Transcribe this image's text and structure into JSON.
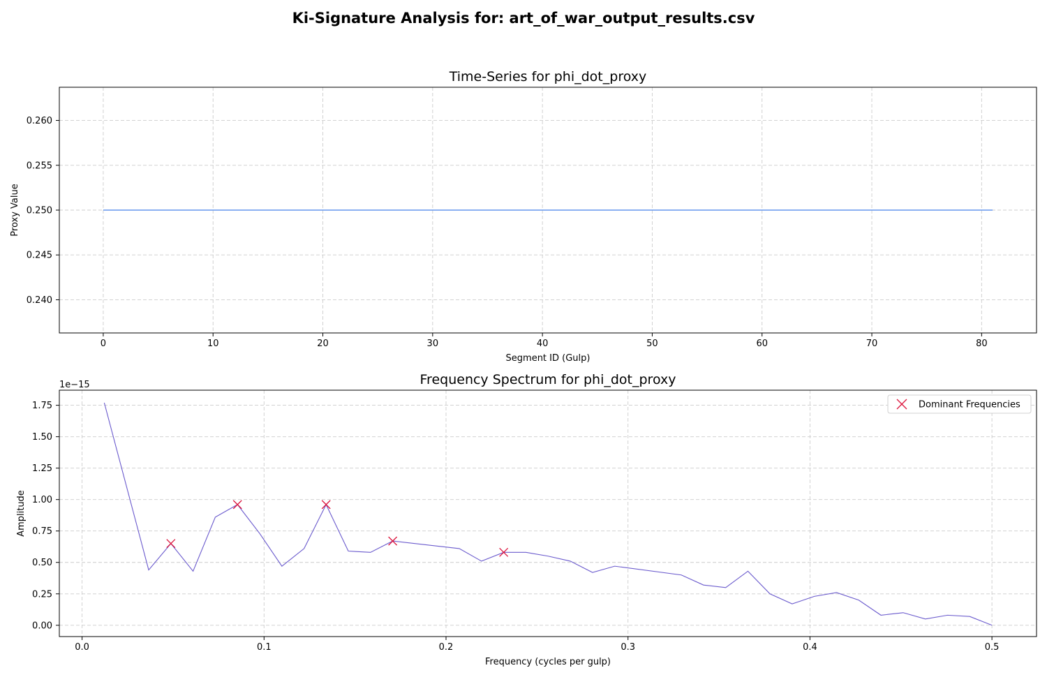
{
  "figure_title": "Ki-Signature Analysis for: art_of_war_output_results.csv",
  "colors": {
    "timeseries_line": "#6495ed",
    "spectrum_line": "#6a5acd",
    "dominant_marker": "#dc143c",
    "grid": "#cccccc"
  },
  "chart_data": [
    {
      "type": "line",
      "title": "Time-Series for phi_dot_proxy",
      "xlabel": "Segment ID (Gulp)",
      "ylabel": "Proxy Value",
      "xlim": [
        -4,
        85
      ],
      "ylim": [
        0.2363,
        0.2637
      ],
      "xticks": [
        0,
        10,
        20,
        30,
        40,
        50,
        60,
        70,
        80
      ],
      "yticks": [
        0.24,
        0.245,
        0.25,
        0.255,
        0.26
      ],
      "ytick_labels": [
        "0.240",
        "0.245",
        "0.250",
        "0.255",
        "0.260"
      ],
      "grid": true,
      "series": [
        {
          "x": [
            0,
            81
          ],
          "y": [
            0.25,
            0.25
          ]
        }
      ]
    },
    {
      "type": "line",
      "title": "Frequency Spectrum for phi_dot_proxy",
      "xlabel": "Frequency (cycles per gulp)",
      "ylabel": "Amplitude",
      "y_scale_label": "1e−15",
      "xlim": [
        -0.0125,
        0.5245
      ],
      "ylim": [
        -0.09,
        1.87
      ],
      "xticks": [
        0.0,
        0.1,
        0.2,
        0.3,
        0.4,
        0.5
      ],
      "xtick_labels": [
        "0.0",
        "0.1",
        "0.2",
        "0.3",
        "0.4",
        "0.5"
      ],
      "yticks": [
        0.0,
        0.25,
        0.5,
        0.75,
        1.0,
        1.25,
        1.5,
        1.75
      ],
      "ytick_labels": [
        "0.00",
        "0.25",
        "0.50",
        "0.75",
        "1.00",
        "1.25",
        "1.50",
        "1.75"
      ],
      "grid": true,
      "legend": {
        "position": "top-right",
        "entries": [
          "Dominant Frequencies"
        ]
      },
      "series": [
        {
          "x": [
            0.0122,
            0.0366,
            0.0488,
            0.061,
            0.0732,
            0.0854,
            0.0976,
            0.1098,
            0.122,
            0.1341,
            0.1463,
            0.1585,
            0.1707,
            0.2073,
            0.2195,
            0.2317,
            0.2439,
            0.2561,
            0.2683,
            0.2805,
            0.2927,
            0.3293,
            0.3415,
            0.3537,
            0.3659,
            0.378,
            0.3902,
            0.4024,
            0.4146,
            0.4268,
            0.439,
            0.4512,
            0.4634,
            0.4756,
            0.4878,
            0.5
          ],
          "y": [
            1.77,
            0.44,
            0.65,
            0.43,
            0.86,
            0.96,
            0.73,
            0.47,
            0.61,
            0.96,
            0.59,
            0.58,
            0.67,
            0.61,
            0.51,
            0.58,
            0.58,
            0.55,
            0.51,
            0.42,
            0.47,
            0.4,
            0.32,
            0.3,
            0.43,
            0.25,
            0.17,
            0.23,
            0.26,
            0.2,
            0.08,
            0.1,
            0.05,
            0.08,
            0.07,
            0.0
          ]
        }
      ],
      "dominant_frequencies": {
        "name": "Dominant Frequencies",
        "x": [
          0.0488,
          0.0854,
          0.1341,
          0.1707,
          0.2317
        ],
        "y": [
          0.65,
          0.96,
          0.96,
          0.67,
          0.58
        ]
      }
    }
  ]
}
